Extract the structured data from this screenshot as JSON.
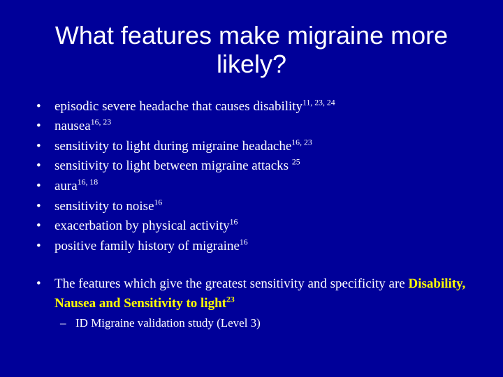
{
  "background_color": "#000099",
  "text_color": "#ffffff",
  "highlight_color": "#ffff00",
  "title_font": "Arial",
  "body_font": "Times New Roman",
  "title_fontsize": 36,
  "bullet_fontsize": 19,
  "sub_bullet_fontsize": 17,
  "title": "What features make migraine more likely?",
  "bullets": {
    "b1_text": "episodic severe headache that causes disability",
    "b1_sup": "11, 23, 24",
    "b2_text": "nausea",
    "b2_sup": "16, 23",
    "b3_text": "sensitivity to light during migraine headache",
    "b3_sup": "16, 23",
    "b4_text": "sensitivity to light between migraine attacks ",
    "b4_sup": "25",
    "b5_text": "aura",
    "b5_sup": "16, 18",
    "b6_text": "sensitivity to noise",
    "b6_sup": "16",
    "b7_text": "exacerbation by physical activity",
    "b7_sup": "16",
    "b8_text": "positive family history of migraine",
    "b8_sup": "16",
    "b9_pre": "The features which give the greatest sensitivity and specificity are ",
    "b9_highlight": "Disability, Nausea and Sensitivity to light",
    "b9_highlight_sup": "23",
    "b9_sub": "ID Migraine validation study (Level 3)"
  }
}
